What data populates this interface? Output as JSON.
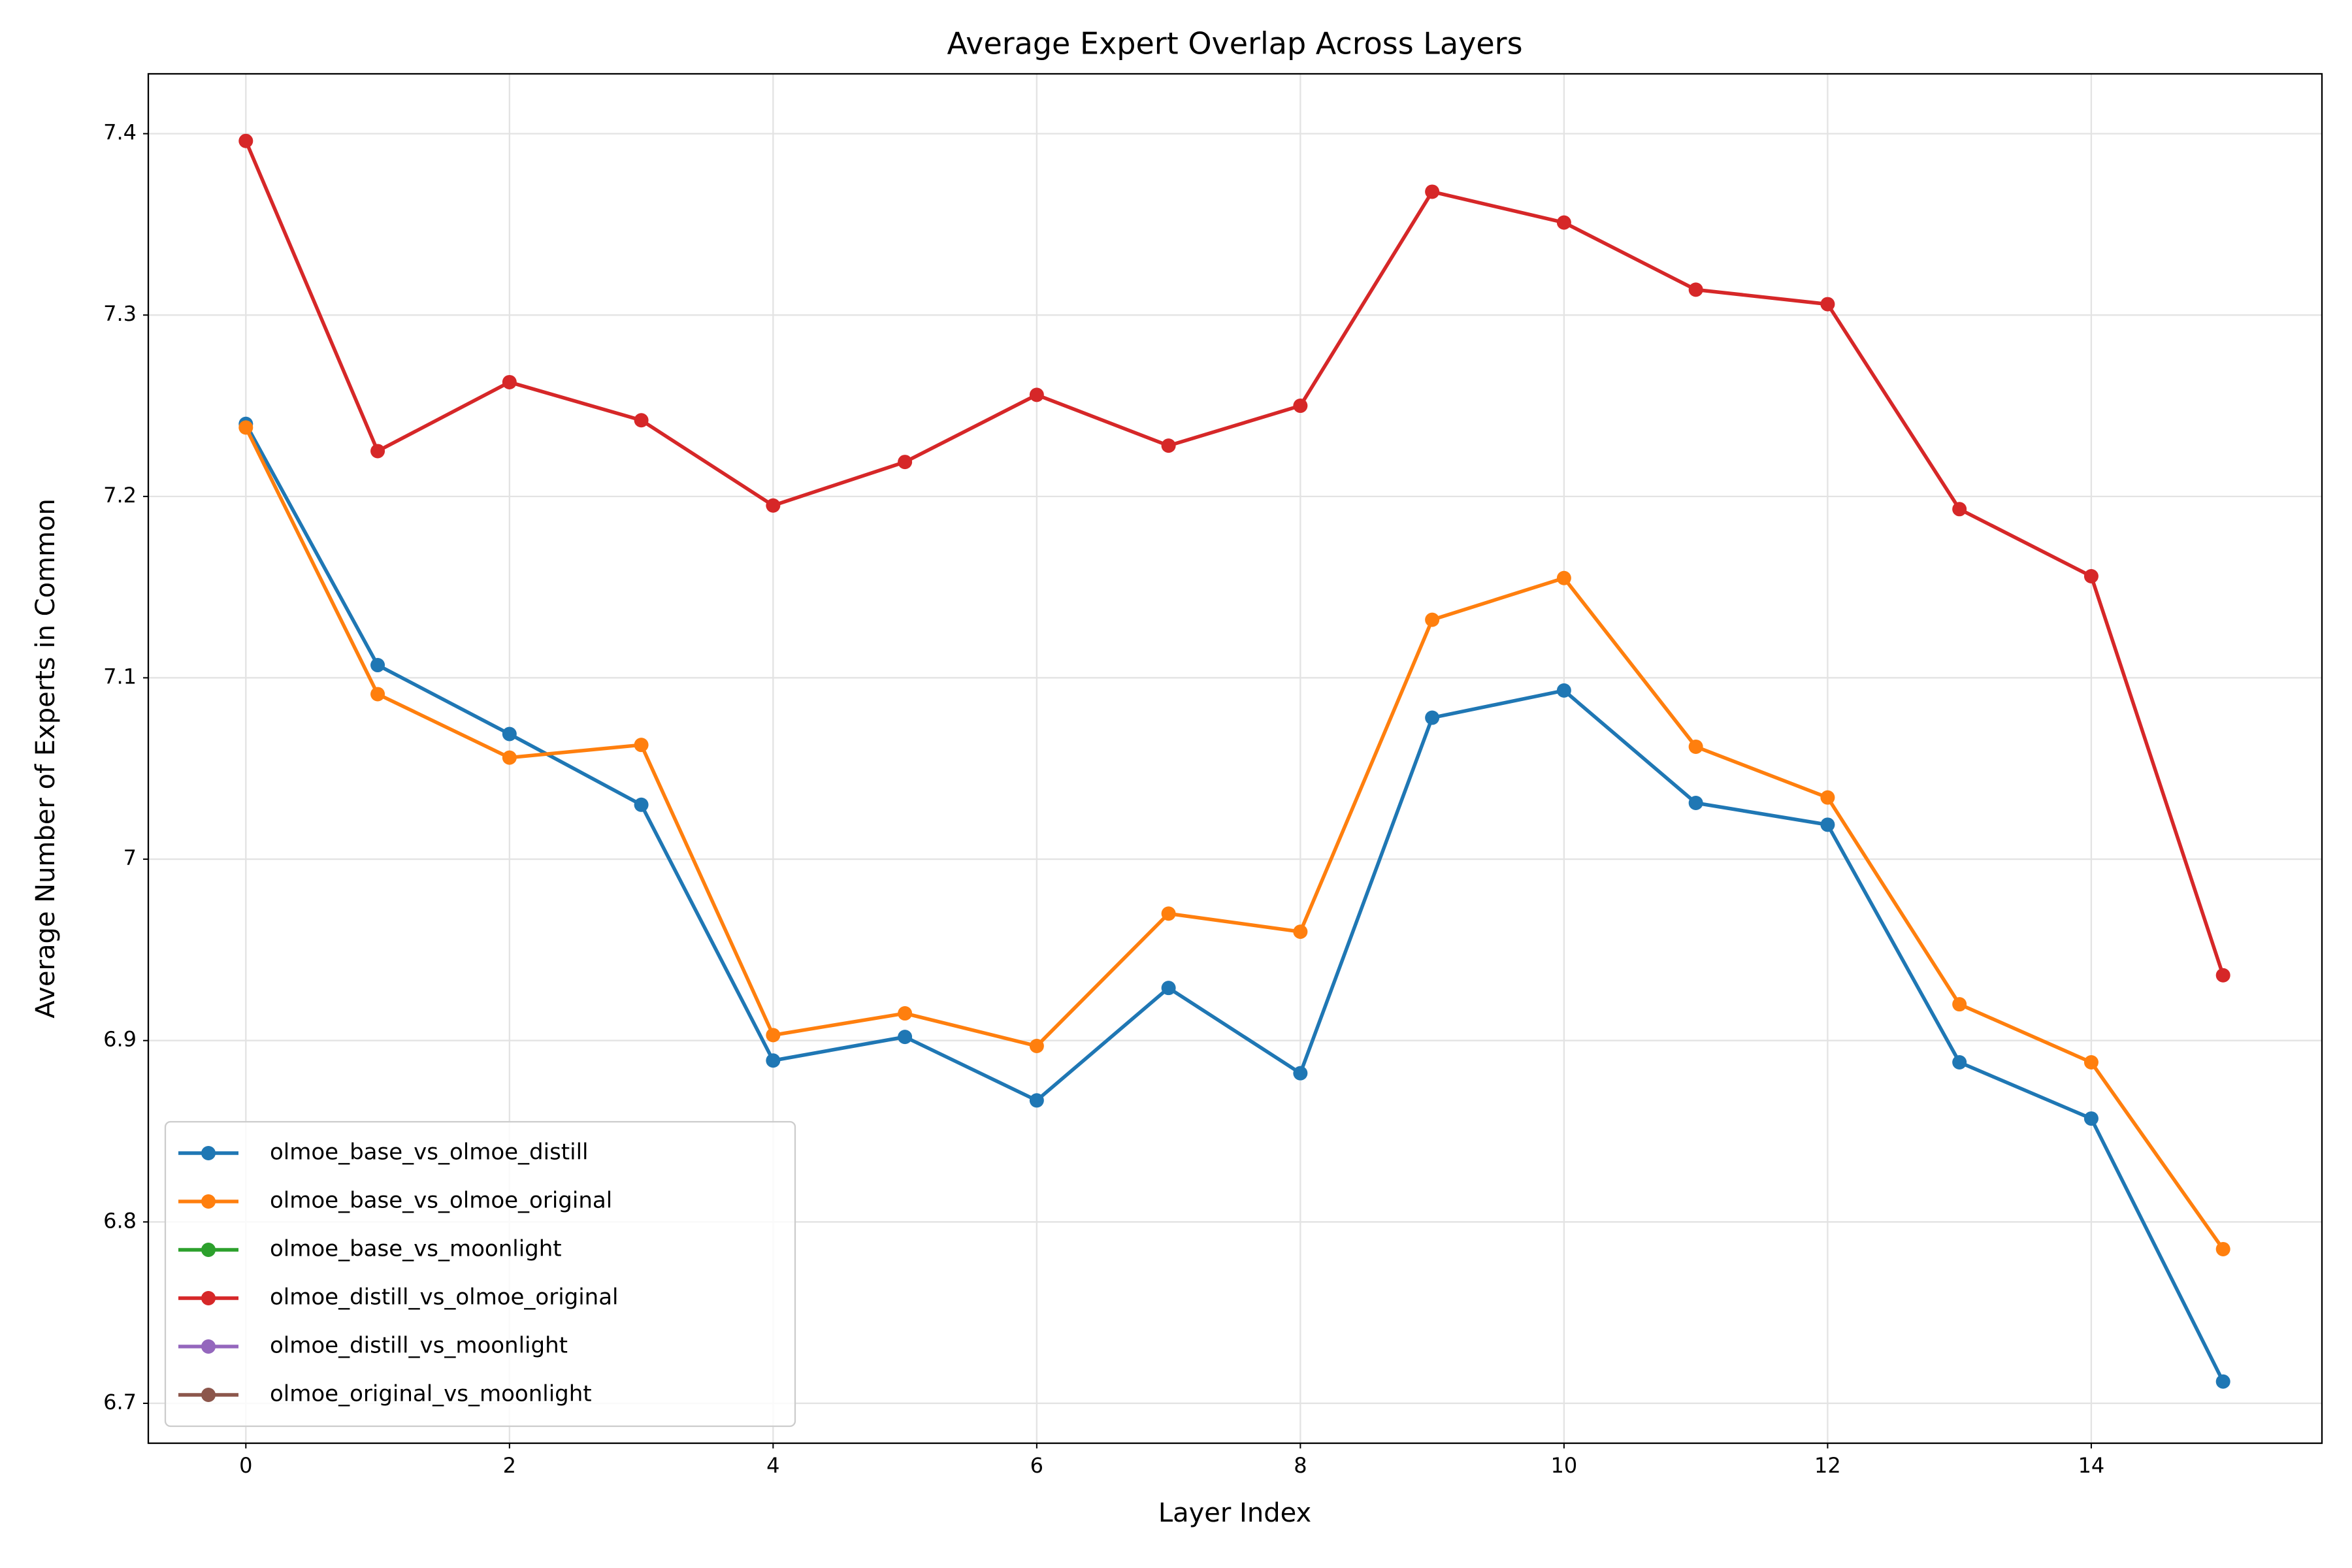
{
  "chart_data": {
    "type": "line",
    "title": "Average Expert Overlap Across Layers",
    "xlabel": "Layer Index",
    "ylabel": "Average Number of Experts in Common",
    "x": [
      0,
      1,
      2,
      3,
      4,
      5,
      6,
      7,
      8,
      9,
      10,
      11,
      12,
      13,
      14,
      15
    ],
    "series": [
      {
        "name": "olmoe_base_vs_olmoe_distill",
        "color": "#1f77b4",
        "values": [
          7.24,
          7.107,
          7.069,
          7.03,
          6.889,
          6.902,
          6.867,
          6.929,
          6.882,
          7.078,
          7.093,
          7.031,
          7.019,
          6.888,
          6.857,
          6.712
        ]
      },
      {
        "name": "olmoe_base_vs_olmoe_original",
        "color": "#ff7f0e",
        "values": [
          7.238,
          7.091,
          7.056,
          7.063,
          6.903,
          6.915,
          6.897,
          6.97,
          6.96,
          7.132,
          7.155,
          7.062,
          7.034,
          6.92,
          6.888,
          6.785
        ]
      },
      {
        "name": "olmoe_base_vs_moonlight",
        "color": "#2ca02c",
        "values": [
          null,
          null,
          null,
          null,
          null,
          null,
          null,
          null,
          null,
          null,
          null,
          null,
          null,
          null,
          null,
          null
        ]
      },
      {
        "name": "olmoe_distill_vs_olmoe_original",
        "color": "#d62728",
        "values": [
          7.396,
          7.225,
          7.263,
          7.242,
          7.195,
          7.219,
          7.256,
          7.228,
          7.25,
          7.368,
          7.351,
          7.314,
          7.306,
          7.193,
          7.156,
          6.936
        ]
      },
      {
        "name": "olmoe_distill_vs_moonlight",
        "color": "#9467bd",
        "values": [
          null,
          null,
          null,
          null,
          null,
          null,
          null,
          null,
          null,
          null,
          null,
          null,
          null,
          null,
          null,
          null
        ]
      },
      {
        "name": "olmoe_original_vs_moonlight",
        "color": "#8c564b",
        "values": [
          null,
          null,
          null,
          null,
          null,
          null,
          null,
          null,
          null,
          null,
          null,
          null,
          null,
          null,
          null,
          null
        ]
      }
    ],
    "xlim": [
      -0.74,
      15.75
    ],
    "xticks": [
      0,
      2,
      4,
      6,
      8,
      10,
      12,
      14
    ],
    "ylim": [
      6.678,
      7.433
    ],
    "yticks": [
      6.7,
      6.8,
      6.9,
      7.0,
      7.1,
      7.2,
      7.3,
      7.4
    ],
    "grid": true,
    "legend": "lower left"
  }
}
